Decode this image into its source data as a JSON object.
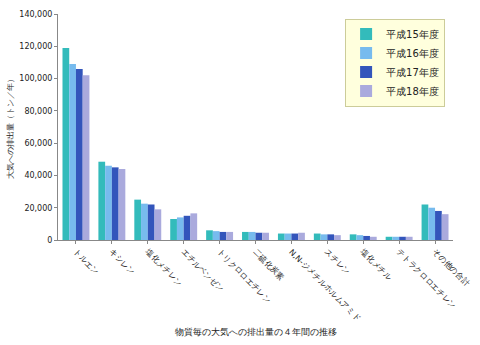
{
  "chart_data": {
    "type": "bar",
    "x_label": "物質毎の大気への排出量の４年間の推移",
    "y_label": "大気への排出量（トン／年）",
    "categories": [
      "トルエン",
      "キシレン",
      "塩化メチレン",
      "エチルベンゼン",
      "トリクロロエチレン",
      "二硫化炭素",
      "N,N-ジメチルホルムアミド",
      "スチレン",
      "塩化メチル",
      "テトラクロロエチレン",
      "その他の合計"
    ],
    "series": [
      {
        "name": "平成15年度",
        "color": "#33bbbb",
        "values": [
          119000,
          48500,
          25000,
          13000,
          6000,
          5000,
          4000,
          4000,
          3500,
          2000,
          22000
        ]
      },
      {
        "name": "平成16年度",
        "color": "#77bbee",
        "values": [
          109000,
          46000,
          22500,
          14000,
          5500,
          5000,
          4000,
          3500,
          3000,
          2000,
          20000
        ]
      },
      {
        "name": "平成17年度",
        "color": "#3355bb",
        "values": [
          106000,
          45000,
          22000,
          15000,
          5000,
          4500,
          4000,
          3500,
          2500,
          2000,
          18000
        ]
      },
      {
        "name": "平成18年度",
        "color": "#aaaadd",
        "values": [
          102000,
          44000,
          19000,
          16500,
          5000,
          4500,
          4500,
          3000,
          2000,
          2000,
          16000
        ]
      }
    ],
    "ylim": [
      0,
      140000
    ],
    "yticks": [
      0,
      {
        "value": 20000,
        "label": "20,000"
      },
      {
        "value": 40000,
        "label": "40,000"
      },
      {
        "value": 60000,
        "label": "60,000"
      },
      {
        "value": 80000,
        "label": "80,000"
      },
      {
        "value": 100000,
        "label": "100,000"
      },
      {
        "value": 120000,
        "label": "120,000"
      },
      {
        "value": 140000,
        "label": "140,000"
      }
    ],
    "grid": false,
    "legend": "upper right"
  }
}
